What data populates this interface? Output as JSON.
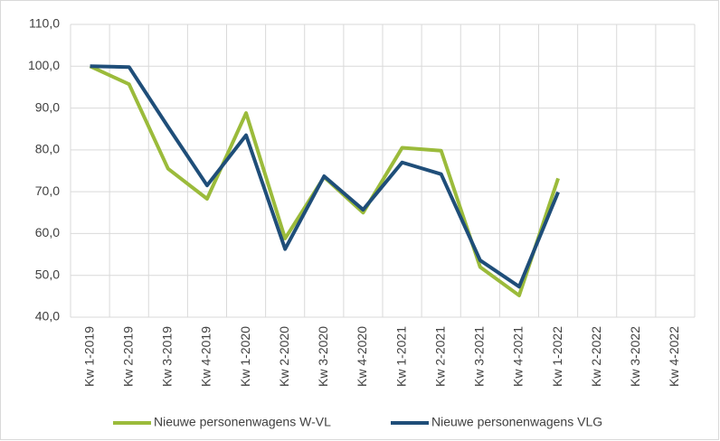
{
  "chart_data": {
    "type": "line",
    "categories": [
      "Kw 1-2019",
      "Kw 2-2019",
      "Kw 3-2019",
      "Kw 4-2019",
      "Kw 1-2020",
      "Kw 2-2020",
      "Kw 3-2020",
      "Kw 4-2020",
      "Kw 1-2021",
      "Kw 2-2021",
      "Kw 3-2021",
      "Kw 4-2021",
      "Kw 1-2022",
      "Kw 2-2022",
      "Kw 3-2022",
      "Kw 4-2022"
    ],
    "series": [
      {
        "name": "Nieuwe personenwagens W-VL",
        "color": "#9bbb3b",
        "values": [
          100,
          95.7,
          75.5,
          68.3,
          88.8,
          58.8,
          73.5,
          65,
          80.5,
          79.8,
          52,
          45.2,
          73.2,
          null,
          null,
          null
        ]
      },
      {
        "name": "Nieuwe personenwagens VLG",
        "color": "#1f4e79",
        "values": [
          100,
          99.8,
          85.5,
          71.5,
          83.5,
          56.3,
          73.7,
          65.7,
          77,
          74.2,
          53.6,
          47.3,
          69.9,
          null,
          null,
          null
        ]
      }
    ],
    "ylim": [
      40,
      110
    ],
    "yticks": [
      {
        "value": 40,
        "label": "40,0"
      },
      {
        "value": 50,
        "label": "50,0"
      },
      {
        "value": 60,
        "label": "60,0"
      },
      {
        "value": 70,
        "label": "70,0"
      },
      {
        "value": 80,
        "label": "80,0"
      },
      {
        "value": 90,
        "label": "90,0"
      },
      {
        "value": 100,
        "label": "100,0"
      },
      {
        "value": 110,
        "label": "110,0"
      }
    ],
    "grid": true,
    "legend": "bottom"
  }
}
